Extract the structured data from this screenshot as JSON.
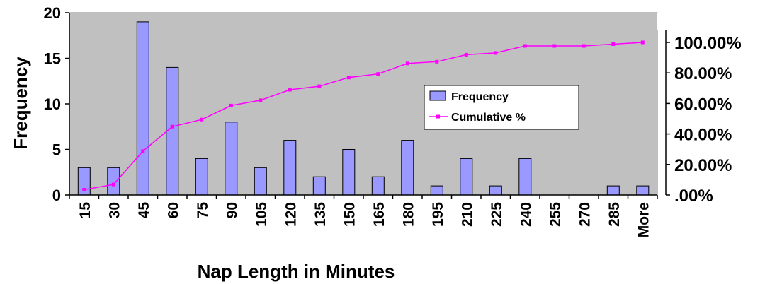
{
  "chart_data": {
    "type": "bar",
    "categories": [
      "15",
      "30",
      "45",
      "60",
      "75",
      "90",
      "105",
      "120",
      "135",
      "150",
      "165",
      "180",
      "195",
      "210",
      "225",
      "240",
      "255",
      "270",
      "285",
      "More"
    ],
    "series": [
      {
        "name": "Frequency",
        "type": "bar",
        "axis": "left",
        "values": [
          3,
          3,
          19,
          14,
          4,
          8,
          3,
          6,
          2,
          5,
          2,
          6,
          1,
          4,
          1,
          4,
          0,
          0,
          1,
          1
        ]
      },
      {
        "name": "Cumulative %",
        "type": "line",
        "axis": "right",
        "values": [
          3.45,
          6.9,
          28.74,
          44.83,
          49.43,
          58.62,
          62.07,
          68.97,
          71.26,
          77.01,
          79.31,
          86.21,
          87.36,
          91.95,
          93.1,
          97.7,
          97.7,
          97.7,
          98.85,
          100.0
        ]
      }
    ],
    "title": "",
    "xlabel": "Nap Length in Minutes",
    "ylabel": "Frequency",
    "ylim": [
      0,
      20
    ],
    "yticks": [
      "0",
      "5",
      "10",
      "15",
      "20"
    ],
    "y2lim": [
      0,
      100
    ],
    "y2ticks": [
      ".00%",
      "20.00%",
      "40.00%",
      "60.00%",
      "80.00%",
      "100.00%"
    ],
    "legend_position": "right",
    "colors": {
      "plot_background": "#c0c0c0",
      "bar_fill": "#9999ff",
      "bar_stroke": "#000000",
      "line": "#ff00ff"
    }
  }
}
